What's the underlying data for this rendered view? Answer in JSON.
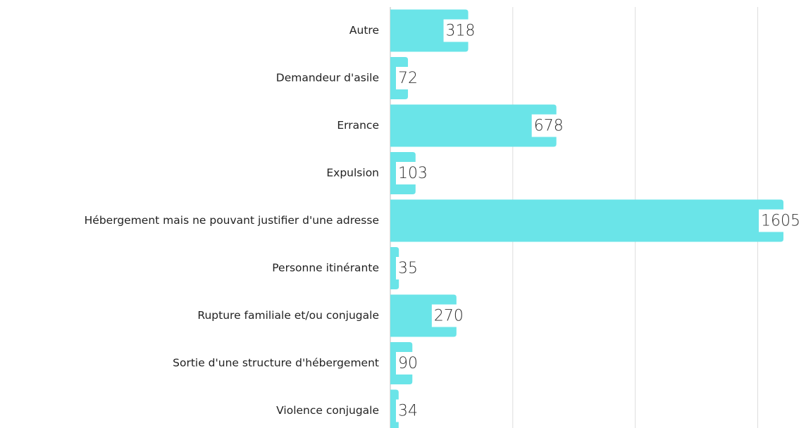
{
  "chart_data": {
    "type": "barh",
    "categories": [
      "Autre",
      "Demandeur d'asile",
      "Errance",
      "Expulsion",
      "Hébergement mais ne pouvant justifier d'une adresse",
      "Personne itinérante",
      "Rupture familiale et/ou conjugale",
      "Sortie d'une structure d'hébergement",
      "Violence conjugale"
    ],
    "values": [
      318,
      72,
      678,
      103,
      1605,
      35,
      270,
      90,
      34
    ],
    "color": "#6ae4e8",
    "xlim": [
      0,
      1700
    ],
    "xticks": [
      0,
      500,
      1000,
      1500
    ],
    "grid": true
  }
}
